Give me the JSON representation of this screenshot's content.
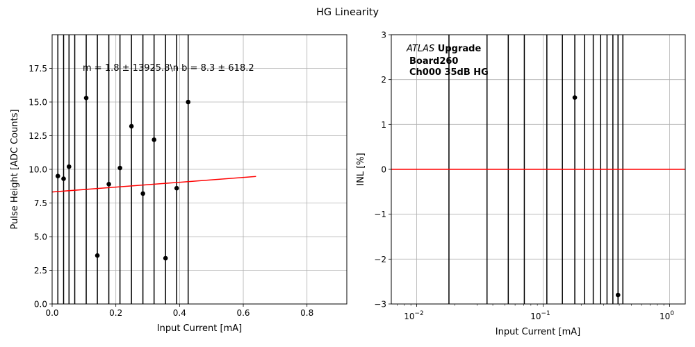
{
  "figure": {
    "title": "HG Linearity"
  },
  "chart_data": [
    {
      "type": "scatter",
      "xlabel": "Input Current [mA]",
      "ylabel": "Pulse Height [ADC Counts]",
      "xlim": [
        0,
        0.925
      ],
      "ylim": [
        0,
        20
      ],
      "x_ticks": [
        "0.0",
        "0.2",
        "0.4",
        "0.6",
        "0.8"
      ],
      "y_ticks": [
        "0.0",
        "2.5",
        "5.0",
        "7.5",
        "10.0",
        "12.5",
        "15.0",
        "17.5"
      ],
      "grid": true,
      "annotation": "m = 1.8 ± 13925.8\\n b = 8.3 ± 618.2",
      "points": [
        {
          "x": 0.018,
          "y": 9.5
        },
        {
          "x": 0.036,
          "y": 9.3
        },
        {
          "x": 0.053,
          "y": 10.2
        },
        {
          "x": 0.107,
          "y": 15.3
        },
        {
          "x": 0.142,
          "y": 3.6
        },
        {
          "x": 0.178,
          "y": 8.9
        },
        {
          "x": 0.213,
          "y": 10.1
        },
        {
          "x": 0.249,
          "y": 13.2
        },
        {
          "x": 0.285,
          "y": 8.2
        },
        {
          "x": 0.32,
          "y": 12.2
        },
        {
          "x": 0.356,
          "y": 3.4
        },
        {
          "x": 0.391,
          "y": 8.6
        },
        {
          "x": 0.427,
          "y": 15.0
        }
      ],
      "vlines": [
        0.018,
        0.036,
        0.053,
        0.071,
        0.107,
        0.142,
        0.178,
        0.213,
        0.249,
        0.285,
        0.32,
        0.356,
        0.391,
        0.427
      ],
      "fit_line": {
        "x": [
          0.0,
          0.64
        ],
        "y": [
          8.32,
          9.47
        ],
        "color": "#ff0000"
      },
      "point_color": "#000000"
    },
    {
      "type": "scatter",
      "xlabel": "Input Current [mA]",
      "ylabel": "INL [%]",
      "xscale": "log",
      "xlim": [
        0.0063,
        1.33
      ],
      "ylim": [
        -3,
        3
      ],
      "x_ticks": [
        {
          "value": 0.01,
          "base": "10",
          "exp": "−2"
        },
        {
          "value": 0.1,
          "base": "10",
          "exp": "−1"
        },
        {
          "value": 1,
          "base": "10",
          "exp": "0"
        }
      ],
      "y_ticks": [
        "−3",
        "−2",
        "−1",
        "0",
        "1",
        "2",
        "3"
      ],
      "grid": true,
      "legend_text": {
        "line1_italic": "ATLAS",
        "line1_bold": " Upgrade",
        "line2": "Board260",
        "line3": "Ch000 35dB HG"
      },
      "points": [
        {
          "x": 0.178,
          "y": 1.6
        },
        {
          "x": 0.391,
          "y": -2.8
        }
      ],
      "vlines": [
        0.018,
        0.036,
        0.053,
        0.071,
        0.107,
        0.142,
        0.178,
        0.213,
        0.249,
        0.285,
        0.32,
        0.356,
        0.391,
        0.427
      ],
      "ref_line": {
        "y": 0,
        "color": "#ff0000"
      },
      "point_color": "#000000"
    }
  ]
}
